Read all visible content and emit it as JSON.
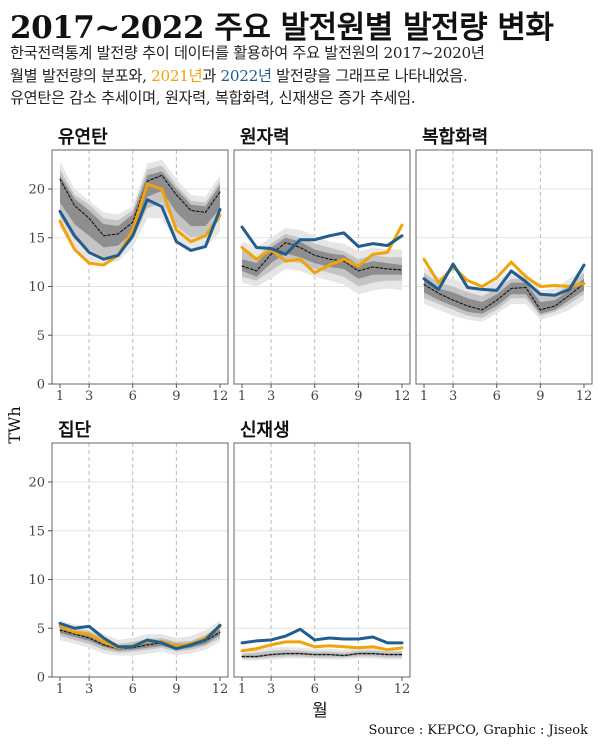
{
  "title": "2017~2022 주요 발전원별 발전량 변화",
  "subtitle": {
    "line1": "한국전력통계 발전량 추이 데이터를 활용하여 주요 발전원의 2017~2020년",
    "line2_pre": "월별 발전량의 분포와, ",
    "line2_y2021": "2021년",
    "line2_mid": "과  ",
    "line2_y2022": "2022년",
    "line2_post": " 발전량을 그래프로 나타내었음.",
    "line3": "유연탄은 감소 추세이며, 원자력, 복합화력, 신재생은 증가 추세임."
  },
  "source": "Source : KEPCO, Graphic : Jiseok",
  "colors": {
    "y2021": "#F0A30A",
    "y2022": "#215D8E",
    "mean": "#111111",
    "band_outer": "#E6E6E6",
    "band_mid": "#C4C4C4",
    "band_inner": "#8E8E8E",
    "panel_border": "#666666",
    "gridline": "#E4E4E4",
    "vline": "#BBBBBB"
  },
  "chart_data": {
    "type": "line",
    "xlabel": "월",
    "ylabel": "TWh",
    "x": [
      1,
      2,
      3,
      4,
      5,
      6,
      7,
      8,
      9,
      10,
      11,
      12
    ],
    "x_ticks": [
      1,
      3,
      6,
      9,
      12
    ],
    "x_dashed_lines": [
      3,
      6,
      9
    ],
    "y_ticks": [
      0,
      5,
      10,
      15,
      20
    ],
    "ylim": [
      0,
      24
    ],
    "panels": [
      {
        "name": "유연탄",
        "y2021": [
          16.7,
          13.8,
          12.4,
          12.2,
          13.2,
          15.8,
          20.5,
          20.0,
          15.8,
          14.6,
          15.2,
          17.3
        ],
        "y2022": [
          17.7,
          15.2,
          13.5,
          12.8,
          13.2,
          15.2,
          18.9,
          18.2,
          14.6,
          13.7,
          14.1,
          17.9
        ],
        "mean": [
          21.0,
          18.3,
          17.0,
          15.2,
          15.4,
          16.6,
          20.8,
          21.4,
          19.4,
          17.8,
          17.6,
          19.7
        ],
        "band_outer": [
          [
            16.0,
            22.8
          ],
          [
            13.8,
            20.0
          ],
          [
            12.6,
            18.8
          ],
          [
            12.4,
            17.6
          ],
          [
            12.6,
            17.4
          ],
          [
            14.0,
            18.2
          ],
          [
            17.0,
            22.6
          ],
          [
            17.0,
            23.0
          ],
          [
            14.6,
            21.0
          ],
          [
            13.8,
            19.4
          ],
          [
            14.0,
            19.2
          ],
          [
            15.6,
            21.4
          ]
        ],
        "band_mid": [
          [
            17.2,
            22.0
          ],
          [
            14.8,
            19.4
          ],
          [
            13.8,
            18.4
          ],
          [
            13.0,
            17.0
          ],
          [
            13.2,
            16.8
          ],
          [
            14.8,
            17.8
          ],
          [
            18.0,
            22.0
          ],
          [
            18.6,
            22.4
          ],
          [
            16.2,
            20.4
          ],
          [
            15.0,
            18.8
          ],
          [
            15.2,
            18.6
          ],
          [
            16.8,
            20.8
          ]
        ],
        "band_inner": [
          [
            18.6,
            21.4
          ],
          [
            16.4,
            19.0
          ],
          [
            15.2,
            17.8
          ],
          [
            14.0,
            16.4
          ],
          [
            14.2,
            16.2
          ],
          [
            15.6,
            17.4
          ],
          [
            19.2,
            21.4
          ],
          [
            19.8,
            21.8
          ],
          [
            17.6,
            20.0
          ],
          [
            16.2,
            18.4
          ],
          [
            16.2,
            18.2
          ],
          [
            18.0,
            20.4
          ]
        ]
      },
      {
        "name": "원자력",
        "y2021": [
          14.0,
          12.8,
          13.8,
          12.6,
          12.8,
          11.4,
          12.2,
          12.8,
          12.1,
          13.3,
          13.5,
          16.3
        ],
        "y2022": [
          16.1,
          14.0,
          13.9,
          13.3,
          14.8,
          14.8,
          15.2,
          15.5,
          14.1,
          14.4,
          14.2,
          15.2
        ],
        "mean": [
          12.1,
          11.6,
          13.3,
          14.5,
          14.0,
          13.2,
          12.8,
          12.6,
          11.6,
          12.0,
          11.8,
          11.7
        ],
        "band_outer": [
          [
            10.4,
            14.6
          ],
          [
            10.0,
            14.0
          ],
          [
            10.8,
            15.0
          ],
          [
            11.8,
            16.0
          ],
          [
            11.6,
            15.8
          ],
          [
            11.0,
            15.2
          ],
          [
            10.6,
            14.6
          ],
          [
            10.2,
            14.4
          ],
          [
            9.2,
            13.6
          ],
          [
            9.6,
            14.0
          ],
          [
            9.8,
            13.8
          ],
          [
            9.6,
            13.8
          ]
        ],
        "band_mid": [
          [
            11.0,
            13.8
          ],
          [
            10.6,
            13.0
          ],
          [
            11.6,
            14.4
          ],
          [
            12.6,
            15.4
          ],
          [
            12.4,
            15.0
          ],
          [
            11.8,
            14.4
          ],
          [
            11.4,
            14.0
          ],
          [
            11.0,
            13.6
          ],
          [
            10.0,
            12.8
          ],
          [
            10.4,
            13.2
          ],
          [
            10.6,
            13.0
          ],
          [
            10.6,
            13.0
          ]
        ],
        "band_inner": [
          [
            11.6,
            12.8
          ],
          [
            11.0,
            12.4
          ],
          [
            12.4,
            14.0
          ],
          [
            13.4,
            15.0
          ],
          [
            13.0,
            14.6
          ],
          [
            12.4,
            13.8
          ],
          [
            12.0,
            13.4
          ],
          [
            11.8,
            13.2
          ],
          [
            10.8,
            12.2
          ],
          [
            11.2,
            12.6
          ],
          [
            11.2,
            12.4
          ],
          [
            11.2,
            12.2
          ]
        ]
      },
      {
        "name": "복합화력",
        "y2021": [
          12.8,
          10.4,
          12.0,
          10.6,
          10.0,
          10.9,
          12.5,
          11.0,
          10.0,
          10.1,
          10.0,
          10.3
        ],
        "y2022": [
          10.8,
          9.7,
          12.3,
          9.9,
          9.7,
          9.6,
          11.6,
          10.5,
          9.2,
          9.1,
          9.7,
          12.2
        ],
        "mean": [
          10.2,
          9.3,
          8.6,
          8.0,
          7.6,
          8.6,
          9.8,
          9.9,
          7.6,
          8.0,
          9.1,
          10.3
        ],
        "band_outer": [
          [
            8.2,
            12.0
          ],
          [
            7.6,
            11.0
          ],
          [
            7.0,
            10.8
          ],
          [
            6.6,
            10.2
          ],
          [
            6.4,
            9.8
          ],
          [
            7.2,
            10.6
          ],
          [
            8.2,
            11.6
          ],
          [
            8.2,
            11.4
          ],
          [
            6.6,
            9.6
          ],
          [
            7.0,
            9.8
          ],
          [
            7.6,
            10.8
          ],
          [
            8.6,
            12.0
          ]
        ],
        "band_mid": [
          [
            8.8,
            11.4
          ],
          [
            8.2,
            10.4
          ],
          [
            7.6,
            10.0
          ],
          [
            7.0,
            9.4
          ],
          [
            6.8,
            9.0
          ],
          [
            7.6,
            9.8
          ],
          [
            8.8,
            10.8
          ],
          [
            8.8,
            10.8
          ],
          [
            7.0,
            9.0
          ],
          [
            7.4,
            9.2
          ],
          [
            8.2,
            10.2
          ],
          [
            9.2,
            11.4
          ]
        ],
        "band_inner": [
          [
            9.4,
            10.8
          ],
          [
            8.6,
            9.8
          ],
          [
            8.0,
            9.4
          ],
          [
            7.4,
            8.8
          ],
          [
            7.2,
            8.4
          ],
          [
            8.0,
            9.2
          ],
          [
            9.2,
            10.4
          ],
          [
            9.2,
            10.4
          ],
          [
            7.2,
            8.4
          ],
          [
            7.6,
            8.6
          ],
          [
            8.6,
            9.6
          ],
          [
            9.6,
            10.8
          ]
        ]
      },
      {
        "name": "집단",
        "y2021": [
          5.2,
          4.6,
          4.4,
          3.6,
          3.0,
          3.2,
          3.7,
          3.6,
          3.2,
          3.4,
          4.0,
          5.2
        ],
        "y2022": [
          5.5,
          5.0,
          5.2,
          4.0,
          3.1,
          3.1,
          3.8,
          3.5,
          2.9,
          3.3,
          3.8,
          5.3
        ],
        "mean": [
          4.8,
          4.4,
          4.0,
          3.3,
          2.9,
          3.0,
          3.3,
          3.5,
          3.1,
          3.2,
          3.7,
          4.6
        ],
        "band_outer": [
          [
            3.8,
            5.8
          ],
          [
            3.4,
            5.4
          ],
          [
            3.0,
            5.2
          ],
          [
            2.4,
            4.4
          ],
          [
            2.2,
            3.8
          ],
          [
            2.2,
            4.0
          ],
          [
            2.4,
            4.4
          ],
          [
            2.6,
            4.4
          ],
          [
            2.2,
            4.0
          ],
          [
            2.4,
            4.2
          ],
          [
            2.8,
            4.8
          ],
          [
            3.6,
            5.8
          ]
        ],
        "band_mid": [
          [
            4.2,
            5.4
          ],
          [
            3.8,
            5.0
          ],
          [
            3.4,
            4.7
          ],
          [
            2.8,
            4.0
          ],
          [
            2.5,
            3.4
          ],
          [
            2.6,
            3.6
          ],
          [
            2.8,
            3.9
          ],
          [
            3.0,
            4.0
          ],
          [
            2.6,
            3.6
          ],
          [
            2.8,
            3.7
          ],
          [
            3.2,
            4.3
          ],
          [
            4.0,
            5.3
          ]
        ],
        "band_inner": [
          [
            4.5,
            5.1
          ],
          [
            4.1,
            4.7
          ],
          [
            3.7,
            4.3
          ],
          [
            3.1,
            3.6
          ],
          [
            2.7,
            3.1
          ],
          [
            2.8,
            3.3
          ],
          [
            3.0,
            3.6
          ],
          [
            3.2,
            3.8
          ],
          [
            2.8,
            3.4
          ],
          [
            3.0,
            3.5
          ],
          [
            3.4,
            4.0
          ],
          [
            4.3,
            4.9
          ]
        ]
      },
      {
        "name": "신재생",
        "y2021": [
          2.7,
          2.9,
          3.3,
          3.6,
          3.6,
          3.1,
          3.2,
          3.1,
          3.0,
          3.1,
          2.8,
          3.0
        ],
        "y2022": [
          3.5,
          3.7,
          3.8,
          4.2,
          4.9,
          3.8,
          4.0,
          3.9,
          3.9,
          4.1,
          3.5,
          3.5
        ],
        "mean": [
          2.1,
          2.1,
          2.3,
          2.4,
          2.4,
          2.3,
          2.3,
          2.2,
          2.4,
          2.4,
          2.3,
          2.3
        ],
        "band_outer": [
          [
            1.7,
            2.7
          ],
          [
            1.7,
            2.8
          ],
          [
            1.8,
            3.0
          ],
          [
            1.9,
            3.1
          ],
          [
            1.9,
            3.0
          ],
          [
            1.9,
            2.9
          ],
          [
            1.8,
            2.9
          ],
          [
            1.8,
            2.8
          ],
          [
            1.9,
            3.0
          ],
          [
            1.9,
            3.0
          ],
          [
            1.8,
            2.9
          ],
          [
            1.8,
            2.9
          ]
        ],
        "band_mid": [
          [
            1.9,
            2.4
          ],
          [
            1.9,
            2.5
          ],
          [
            2.0,
            2.7
          ],
          [
            2.1,
            2.8
          ],
          [
            2.1,
            2.7
          ],
          [
            2.0,
            2.6
          ],
          [
            2.0,
            2.6
          ],
          [
            2.0,
            2.5
          ],
          [
            2.1,
            2.7
          ],
          [
            2.1,
            2.7
          ],
          [
            2.0,
            2.6
          ],
          [
            2.0,
            2.6
          ]
        ],
        "band_inner": [
          [
            2.0,
            2.2
          ],
          [
            2.0,
            2.2
          ],
          [
            2.2,
            2.4
          ],
          [
            2.3,
            2.5
          ],
          [
            2.3,
            2.5
          ],
          [
            2.2,
            2.4
          ],
          [
            2.2,
            2.4
          ],
          [
            2.1,
            2.3
          ],
          [
            2.3,
            2.5
          ],
          [
            2.3,
            2.5
          ],
          [
            2.2,
            2.4
          ],
          [
            2.2,
            2.4
          ]
        ]
      }
    ]
  }
}
